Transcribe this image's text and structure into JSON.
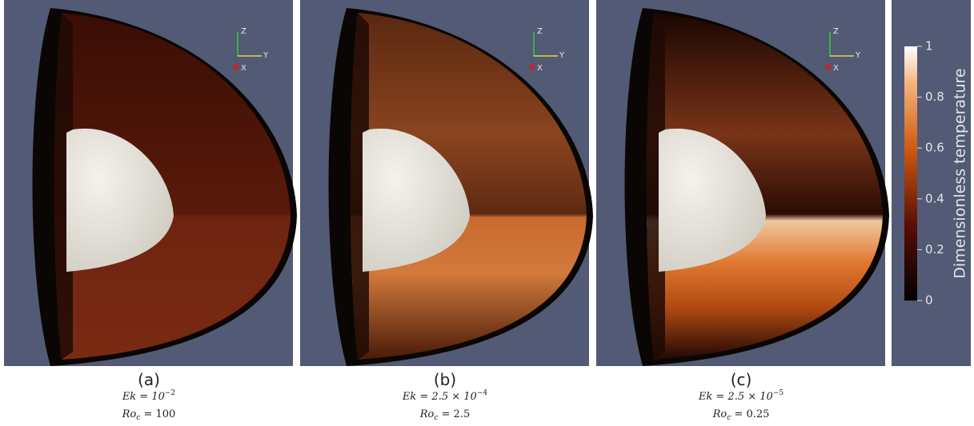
{
  "panels": [
    {
      "label": "(a)",
      "ek": "Ek = 10",
      "ek_exponent": "−2",
      "ro": "Ro",
      "ro_subscript": "c",
      "ro_value": " = 100",
      "axes": [
        "Z",
        "Y",
        "X"
      ]
    },
    {
      "label": "(b)",
      "ek": "Ek = 2.5 × 10",
      "ek_exponent": "−4",
      "ro": "Ro",
      "ro_subscript": "c",
      "ro_value": " = 2.5",
      "axes": [
        "Z",
        "Y",
        "X"
      ]
    },
    {
      "label": "(c)",
      "ek": "Ek = 2.5 × 10",
      "ek_exponent": "−5",
      "ro": "Ro",
      "ro_subscript": "c",
      "ro_value": " = 0.25",
      "axes": [
        "Z",
        "Y",
        "X"
      ]
    }
  ],
  "colorbar": {
    "title": "Dimensionless temperature",
    "range": [
      0,
      1
    ],
    "ticks": [
      0,
      0.2,
      0.4,
      0.6,
      0.8,
      1
    ]
  }
}
